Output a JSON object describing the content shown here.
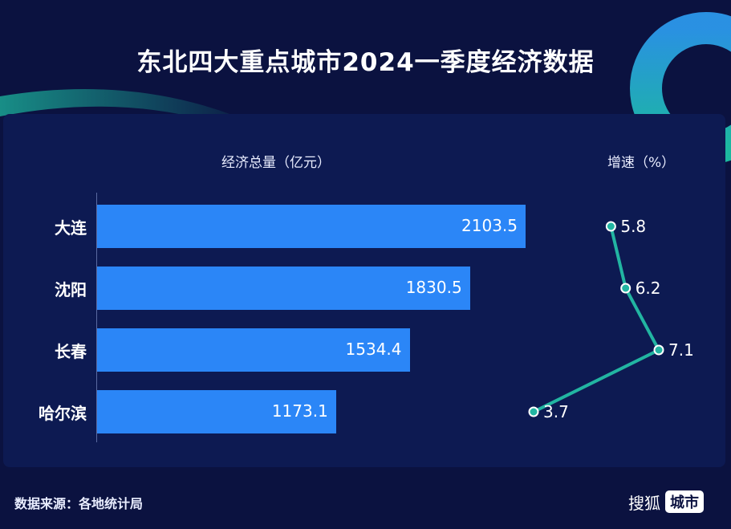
{
  "title": "东北四大重点城市2024一季度经济数据",
  "source": "数据来源：各地统计局",
  "logo": {
    "text": "搜狐",
    "badge": "城市"
  },
  "colors": {
    "background": "#0b1240",
    "bar": "#2b86f7",
    "growth_line": "#22b5a2"
  },
  "chart_data": {
    "type": "bar",
    "categories": [
      "大连",
      "沈阳",
      "长春",
      "哈尔滨"
    ],
    "series": [
      {
        "name": "经济总量（亿元）",
        "type": "bar",
        "values": [
          2103.5,
          1830.5,
          1534.4,
          1173.1
        ]
      },
      {
        "name": "增速（%）",
        "type": "line",
        "values": [
          5.8,
          6.2,
          7.1,
          3.7
        ]
      }
    ],
    "value_labels": [
      "2103.5",
      "1830.5",
      "1534.4",
      "1173.1"
    ],
    "growth_labels": [
      "5.8",
      "6.2",
      "7.1",
      "3.7"
    ],
    "bar_axis_label": "经济总量（亿元）",
    "growth_axis_label": "增速（%）",
    "orientation": "horizontal"
  }
}
